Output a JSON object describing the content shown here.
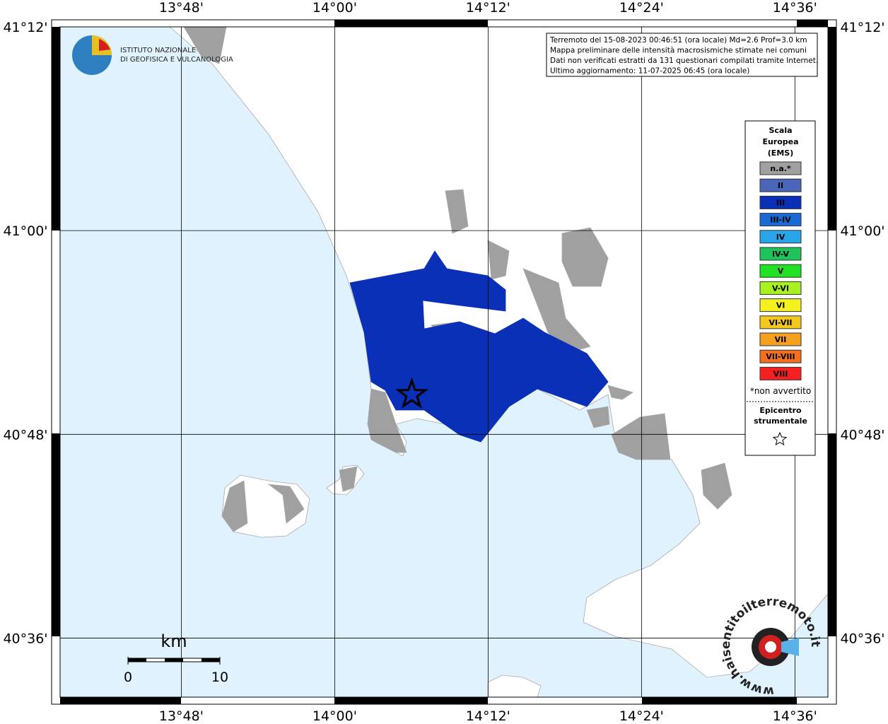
{
  "map": {
    "lon_range": [
      13.642,
      14.643
    ],
    "lat_range": [
      40.542,
      41.2
    ],
    "longitudes": [
      {
        "value": 13.8,
        "label": "13°48'"
      },
      {
        "value": 14.0,
        "label": "14°00'"
      },
      {
        "value": 14.2,
        "label": "14°12'"
      },
      {
        "value": 14.4,
        "label": "14°24'"
      },
      {
        "value": 14.6,
        "label": "14°36'"
      }
    ],
    "latitudes": [
      {
        "value": 41.2,
        "label": "41°12'"
      },
      {
        "value": 41.0,
        "label": "41°00'"
      },
      {
        "value": 40.8,
        "label": "40°48'"
      },
      {
        "value": 40.6,
        "label": "40°36'"
      }
    ],
    "epicenter": {
      "lon": 14.1005,
      "lat": 40.839
    }
  },
  "header": {
    "logo_lines": [
      "ISTITUTO NAZIONALE",
      "DI GEOFISICA E VULCANOLOGIA"
    ],
    "info_lines": [
      "Terremoto del 15-08-2023 00:46:51 (ora locale) Md=2.6 Prof=3.0 km",
      "Mappa preliminare delle intensità macrosismiche stimate nei comuni",
      "Dati non verificati estratti da 131 questionari compilati tramite Internet.",
      "Ultimo aggiornamento: 11-07-2025 06:45 (ora locale)"
    ]
  },
  "legend": {
    "title_lines": [
      "Scala",
      "Europea",
      "(EMS)"
    ],
    "items": [
      {
        "label": "n.a.*",
        "color": "#a0a0a0"
      },
      {
        "label": "II",
        "color": "#4a66b8"
      },
      {
        "label": "III",
        "color": "#0a30b8"
      },
      {
        "label": "III-IV",
        "color": "#1a6ad6"
      },
      {
        "label": "IV",
        "color": "#28a4e8"
      },
      {
        "label": "IV-V",
        "color": "#1ec35c"
      },
      {
        "label": "V",
        "color": "#22e022"
      },
      {
        "label": "V-VI",
        "color": "#a8f020"
      },
      {
        "label": "VI",
        "color": "#f5f020"
      },
      {
        "label": "VI-VII",
        "color": "#f5c81e"
      },
      {
        "label": "VII",
        "color": "#f5a01e"
      },
      {
        "label": "VII-VIII",
        "color": "#f5701e"
      },
      {
        "label": "VIII",
        "color": "#f52020"
      }
    ],
    "note": "*non avvertito",
    "epicenter_title_lines": [
      "Epicentro",
      "strumentale"
    ]
  },
  "scale_bar": {
    "unit": "km",
    "ticks": [
      0,
      10
    ]
  },
  "footer": {
    "site": "www.haisentitoilterremoto.it"
  }
}
